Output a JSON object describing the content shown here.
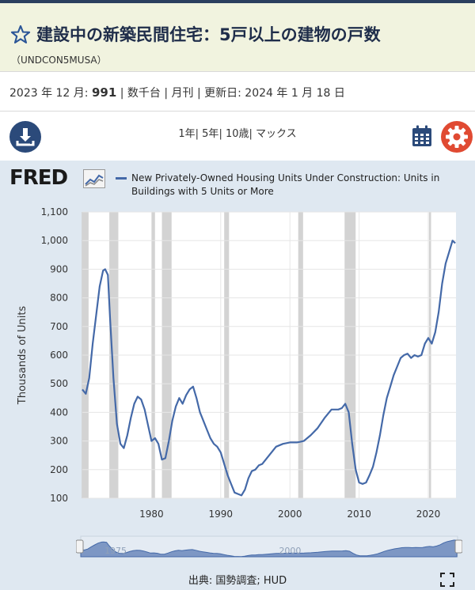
{
  "header": {
    "title": "建設中の新築民間住宅：5戸以上の建物の戸数",
    "series_id": "（UNDCON5MUSA）"
  },
  "meta": {
    "date": "2023 年 12 月: ",
    "value": "991",
    "rest": " | 数千台 | 月刊 | 更新日: 2024 年 1 月 18 日"
  },
  "toolbar": {
    "ranges": [
      "1年",
      "5年",
      "10歳",
      "マックス"
    ],
    "download_icon": "download-icon",
    "calendar_icon": "calendar-icon",
    "settings_icon": "gear-icon"
  },
  "logo": {
    "text": "FRED"
  },
  "source": "出典: 国勢調査; HUD",
  "colors": {
    "line": "#4469a8",
    "recession": "#d3d3d3",
    "gear": "#e04a32",
    "download": "#2b4a7a",
    "header_bg": "#f1f3df",
    "panel_bg": "#dfe8f1"
  },
  "chart_data": {
    "type": "line",
    "series": [
      {
        "name": "New Privately-Owned Housing Units Under Construction: Units in Buildings with 5 Units or More",
        "x": [
          1970.0,
          1970.5,
          1971.0,
          1971.5,
          1972.0,
          1972.5,
          1973.0,
          1973.3,
          1973.7,
          1974.0,
          1974.5,
          1975.0,
          1975.5,
          1976.0,
          1976.5,
          1977.0,
          1977.5,
          1978.0,
          1978.5,
          1979.0,
          1979.5,
          1980.0,
          1980.5,
          1981.0,
          1981.5,
          1982.0,
          1982.5,
          1983.0,
          1983.5,
          1984.0,
          1984.5,
          1985.0,
          1985.5,
          1986.0,
          1986.5,
          1987.0,
          1987.5,
          1988.0,
          1988.5,
          1989.0,
          1989.5,
          1990.0,
          1990.5,
          1991.0,
          1991.5,
          1992.0,
          1992.5,
          1993.0,
          1993.5,
          1994.0,
          1994.5,
          1995.0,
          1995.5,
          1996.0,
          1997.0,
          1998.0,
          1999.0,
          2000.0,
          2001.0,
          2002.0,
          2003.0,
          2004.0,
          2005.0,
          2006.0,
          2007.0,
          2007.5,
          2008.0,
          2008.5,
          2009.0,
          2009.5,
          2010.0,
          2010.5,
          2011.0,
          2011.5,
          2012.0,
          2012.5,
          2013.0,
          2013.5,
          2014.0,
          2014.5,
          2015.0,
          2015.5,
          2016.0,
          2016.5,
          2017.0,
          2017.5,
          2018.0,
          2018.5,
          2019.0,
          2019.5,
          2020.0,
          2020.5,
          2021.0,
          2021.5,
          2022.0,
          2022.5,
          2023.0,
          2023.5,
          2023.9
        ],
        "y": [
          480,
          465,
          520,
          640,
          740,
          840,
          895,
          900,
          880,
          730,
          520,
          360,
          290,
          275,
          320,
          380,
          430,
          455,
          445,
          410,
          355,
          300,
          310,
          290,
          235,
          240,
          300,
          370,
          420,
          450,
          430,
          460,
          480,
          490,
          450,
          400,
          370,
          340,
          310,
          290,
          280,
          260,
          220,
          180,
          150,
          120,
          115,
          110,
          130,
          170,
          195,
          200,
          215,
          220,
          250,
          280,
          290,
          295,
          295,
          300,
          320,
          345,
          380,
          410,
          410,
          415,
          430,
          400,
          290,
          200,
          155,
          150,
          155,
          180,
          210,
          260,
          320,
          390,
          450,
          490,
          530,
          560,
          590,
          600,
          605,
          590,
          600,
          595,
          600,
          640,
          660,
          640,
          680,
          750,
          850,
          920,
          960,
          1000,
          991
        ]
      }
    ],
    "recessions": [
      [
        1969.9,
        1970.9
      ],
      [
        1973.9,
        1975.2
      ],
      [
        1980.0,
        1980.5
      ],
      [
        1981.5,
        1982.9
      ],
      [
        1990.5,
        1991.2
      ],
      [
        2001.2,
        2001.9
      ],
      [
        2007.9,
        2009.5
      ],
      [
        2020.1,
        2020.4
      ]
    ],
    "xlabel": "",
    "ylabel": "Thousands of Units",
    "xticks": [
      1980,
      1990,
      2000,
      2010,
      2020
    ],
    "yticks": [
      100,
      200,
      300,
      400,
      500,
      600,
      700,
      800,
      900,
      1000,
      1100
    ],
    "ytick_labels": [
      "100",
      "200",
      "300",
      "400",
      "500",
      "600",
      "700",
      "800",
      "900",
      "1,000",
      "1,100"
    ],
    "xlim": [
      1970,
      2024
    ],
    "ylim": [
      100,
      1100
    ],
    "grid": true,
    "legend": "top",
    "navigator_labels": [
      "1975",
      "2000"
    ]
  }
}
